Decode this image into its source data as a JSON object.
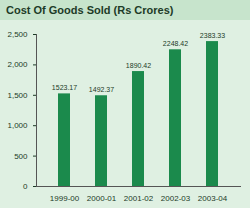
{
  "chart_data": {
    "type": "bar",
    "title": "Cost Of Goods Sold (Rs Crores)",
    "categories": [
      "1999-00",
      "2000-01",
      "2001-02",
      "2002-03",
      "2003-04"
    ],
    "values": [
      1523.17,
      1492.37,
      1890.42,
      2248.42,
      2383.33
    ],
    "color": "#1b8a4c",
    "ylim": [
      0,
      2500
    ],
    "yticks": [
      0,
      500,
      1000,
      1500,
      2000,
      2500
    ],
    "grid": false,
    "data_labels": true
  }
}
